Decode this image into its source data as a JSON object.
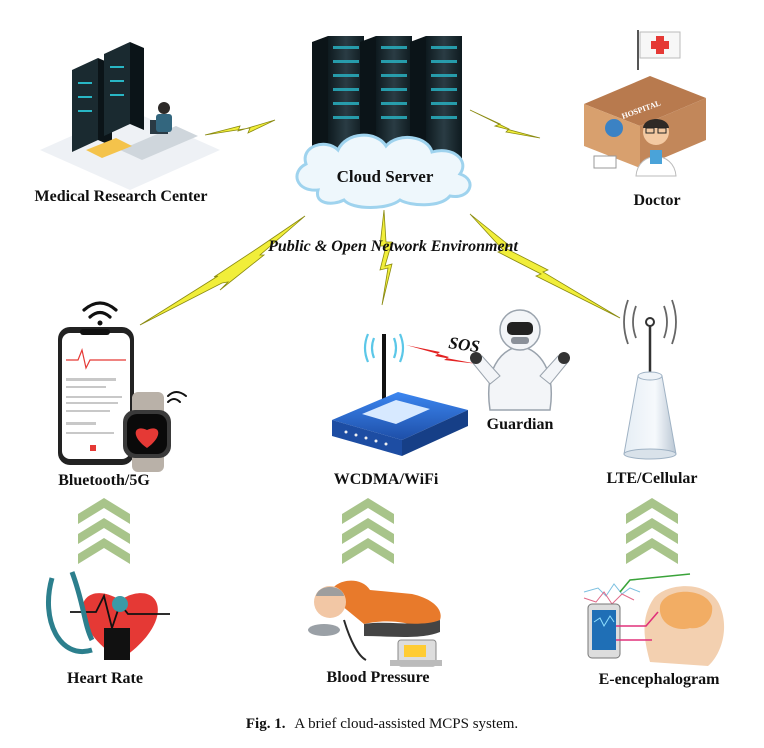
{
  "nodes": {
    "cloud": "Cloud Server",
    "research": "Medical Research Center",
    "doctor": "Doctor",
    "bluetooth": "Bluetooth/5G",
    "wifi": "WCDMA/WiFi",
    "cellular": "LTE/Cellular",
    "guardian": "Guardian",
    "heart": "Heart Rate",
    "bp": "Blood Pressure",
    "eeg": "E-encephalogram"
  },
  "network_label": "Public & Open Network Environment",
  "sos": "SOS",
  "hospital_sign": "HOSPITAL",
  "caption": {
    "prefix": "Fig. 1.",
    "text": "A brief cloud-assisted MCPS system."
  },
  "colors": {
    "lightning": "#f1ee3a",
    "lightning_outline": "#8a8a10",
    "sos_bolt": "#e32222",
    "arrow_green": "#a8c48a",
    "router_blue": "#2f6fd6",
    "server_dark": "#1a2a30",
    "cloud_fill": "#eef7fc",
    "cloud_stroke": "#9fd3ee"
  },
  "icons": [
    "server-rack-icon",
    "cloud-icon",
    "hospital-icon",
    "doctor-icon",
    "smartphone-icon",
    "smartwatch-icon",
    "wifi-signal-icon",
    "router-icon",
    "hazmat-guardian-icon",
    "cell-tower-icon",
    "stethoscope-heart-icon",
    "blood-pressure-monitor-icon",
    "brain-eeg-icon"
  ]
}
